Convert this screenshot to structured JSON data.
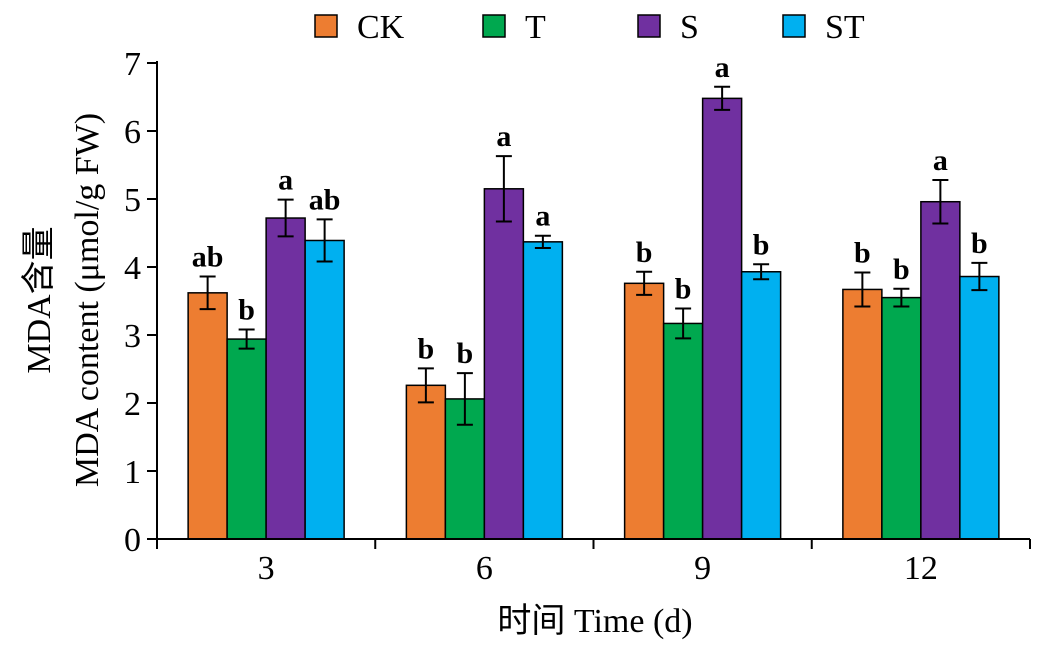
{
  "chart_data": {
    "type": "bar",
    "categories": [
      "3",
      "6",
      "9",
      "12"
    ],
    "series": [
      {
        "name": "CK",
        "color": "#ED7D31",
        "values": [
          3.62,
          2.26,
          3.76,
          3.67
        ],
        "errors": [
          0.24,
          0.25,
          0.17,
          0.25
        ],
        "labels": [
          "ab",
          "b",
          "b",
          "b"
        ]
      },
      {
        "name": "T",
        "color": "#00A84F",
        "values": [
          2.94,
          2.06,
          3.17,
          3.55
        ],
        "errors": [
          0.14,
          0.38,
          0.22,
          0.13
        ],
        "labels": [
          "b",
          "b",
          "b",
          "b"
        ]
      },
      {
        "name": "S",
        "color": "#7030A0",
        "values": [
          4.72,
          5.15,
          6.48,
          4.96
        ],
        "errors": [
          0.27,
          0.48,
          0.17,
          0.32
        ],
        "labels": [
          "a",
          "a",
          "a",
          "a"
        ]
      },
      {
        "name": "ST",
        "color": "#00B0F0",
        "values": [
          4.39,
          4.37,
          3.93,
          3.86
        ],
        "errors": [
          0.31,
          0.09,
          0.11,
          0.2
        ],
        "labels": [
          "ab",
          "a",
          "b",
          "b"
        ]
      }
    ],
    "xlabel": "时间 Time (d)",
    "ylabel": [
      "MDA含量",
      "MDA content (μmol/g FW)"
    ],
    "ylim": [
      0,
      7
    ],
    "yticks": [
      0,
      1,
      2,
      3,
      4,
      5,
      6,
      7
    ],
    "grid": false,
    "legend": "top"
  }
}
